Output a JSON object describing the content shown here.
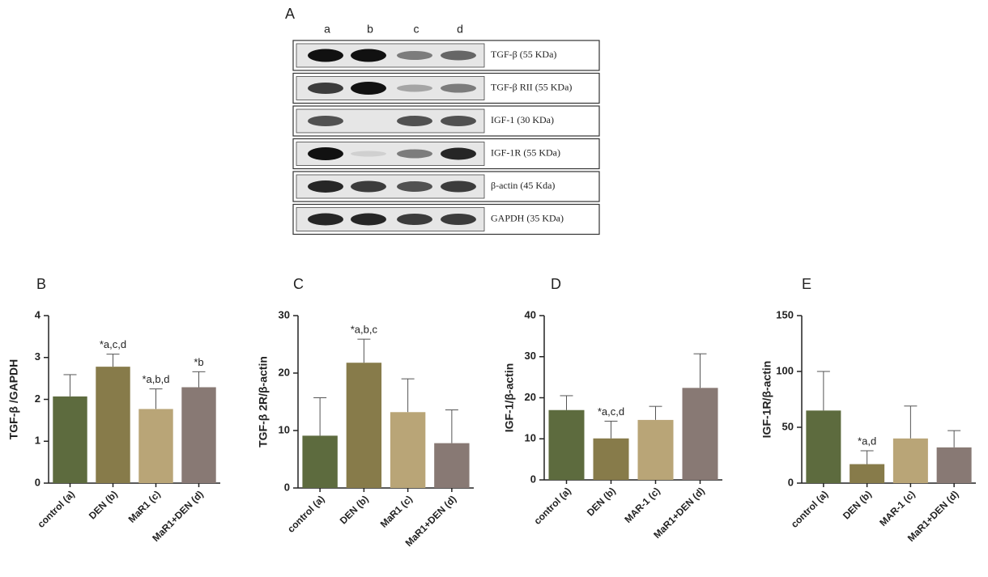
{
  "panel_a": {
    "label": "A",
    "lanes": [
      "a",
      "b",
      "c",
      "d"
    ],
    "bands": [
      "TGF-β (55 KDa)",
      "TGF-β RII (55 KDa)",
      "IGF-1 (30 KDa)",
      "IGF-1R (55 KDa)",
      "β-actin (45 Kda)",
      "GAPDH (35 KDa)"
    ]
  },
  "chart_data": [
    {
      "type": "bar",
      "panel": "B",
      "ylabel": "TGF-β /GAPDH",
      "categories": [
        "control (a)",
        "DEN (b)",
        "MaR1 (c)",
        "MaR1+DEN (d)"
      ],
      "values": [
        2.07,
        2.78,
        1.77,
        2.29
      ],
      "errors": [
        0.52,
        0.3,
        0.48,
        0.37
      ],
      "annotations": [
        null,
        "*a,c,d",
        "*a,b,d",
        "*b"
      ],
      "colors": [
        "#5d6b3e",
        "#877b4a",
        "#b9a577",
        "#887974"
      ],
      "ylim": [
        0,
        4
      ],
      "yticks": [
        0,
        1,
        2,
        3,
        4
      ]
    },
    {
      "type": "bar",
      "panel": "C",
      "ylabel": "TGF-β 2R/β-actin",
      "categories": [
        "control (a)",
        "DEN (b)",
        "MaR1 (c)",
        "MaR1+DEN (d)"
      ],
      "values": [
        9.1,
        21.8,
        13.2,
        7.8
      ],
      "errors": [
        6.6,
        4.1,
        5.8,
        5.8
      ],
      "annotations": [
        null,
        "*a,b,c",
        null,
        null
      ],
      "colors": [
        "#5d6b3e",
        "#877b4a",
        "#b9a577",
        "#887974"
      ],
      "ylim": [
        0,
        30
      ],
      "yticks": [
        0,
        10,
        20,
        30
      ]
    },
    {
      "type": "bar",
      "panel": "D",
      "ylabel": "IGF-1/β-actin",
      "categories": [
        "control (a)",
        "DEN (b)",
        "MAR-1 (c)",
        "MaR1+DEN (d)"
      ],
      "values": [
        17,
        10.1,
        14.6,
        22.4
      ],
      "errors": [
        3.5,
        4.2,
        3.3,
        8.3
      ],
      "annotations": [
        null,
        "*a,c,d",
        null,
        null
      ],
      "colors": [
        "#5d6b3e",
        "#877b4a",
        "#b9a577",
        "#887974"
      ],
      "ylim": [
        0,
        40
      ],
      "yticks": [
        0,
        10,
        20,
        30,
        40
      ]
    },
    {
      "type": "bar",
      "panel": "E",
      "ylabel": "IGF-1R/β-actin",
      "categories": [
        "control (a)",
        "DEN (b)",
        "MAR-1 (c)",
        "MaR1+DEN (d)"
      ],
      "values": [
        65,
        17,
        40,
        32
      ],
      "errors": [
        35,
        12,
        29,
        15
      ],
      "annotations": [
        null,
        "*a,d",
        null,
        null
      ],
      "colors": [
        "#5d6b3e",
        "#877b4a",
        "#b9a577",
        "#887974"
      ],
      "ylim": [
        0,
        150
      ],
      "yticks": [
        0,
        50,
        100,
        150
      ]
    }
  ]
}
